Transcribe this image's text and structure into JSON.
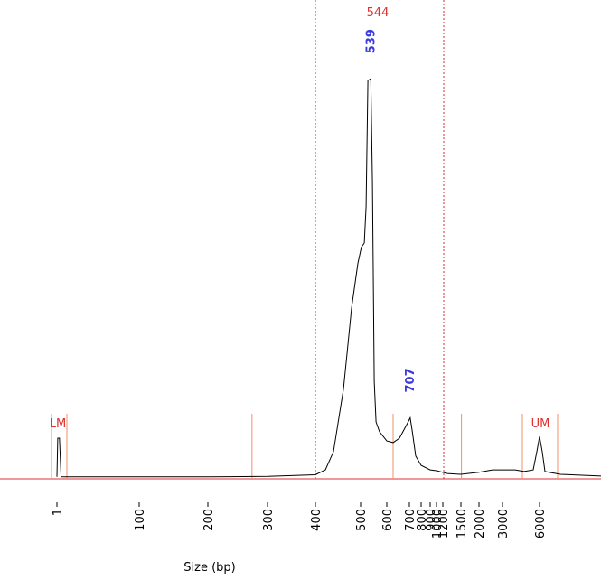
{
  "chart_data": {
    "type": "line",
    "x_label": "Size (bp)",
    "xticks": [
      1,
      100,
      200,
      300,
      400,
      500,
      600,
      700,
      800,
      900,
      1000,
      1200,
      1500,
      2000,
      3000,
      6000
    ],
    "ylim": [
      0,
      100
    ],
    "series": [
      {
        "color": "#000000",
        "x": [
          1,
          2,
          3,
          4,
          6,
          100,
          200,
          300,
          400,
          422,
          440,
          462,
          472,
          480,
          494,
          503,
          514,
          521,
          528,
          539,
          545,
          552,
          559,
          572,
          600,
          628,
          656,
          688,
          707,
          723,
          754,
          800,
          900,
          1000,
          1275,
          1500,
          2000,
          2577,
          4024,
          4756,
          5488,
          5780,
          6000,
          6220,
          6439,
          7683,
          10975
        ],
        "values": [
          0.5,
          10,
          10,
          10,
          0.5,
          0.5,
          0.5,
          0.6,
          1,
          2.2,
          6.7,
          22,
          33,
          42,
          53,
          57,
          58,
          67,
          98,
          98.4,
          73,
          24,
          14,
          11.6,
          9.3,
          8.9,
          10,
          13.3,
          15,
          12,
          5.6,
          3.3,
          2.2,
          2,
          1.3,
          1.1,
          1.6,
          2.2,
          2.2,
          1.8,
          2.2,
          6.7,
          10.4,
          6.7,
          1.8,
          1.1,
          0.7
        ]
      }
    ],
    "peaks": [
      539,
      707
    ],
    "markers": [
      {
        "label": "LM",
        "x": 1
      },
      {
        "label": "UM",
        "x": 6000
      }
    ],
    "marker_lines": [
      274,
      628,
      1515
    ],
    "region": {
      "from": 400,
      "to": 1215,
      "size": 544
    }
  }
}
